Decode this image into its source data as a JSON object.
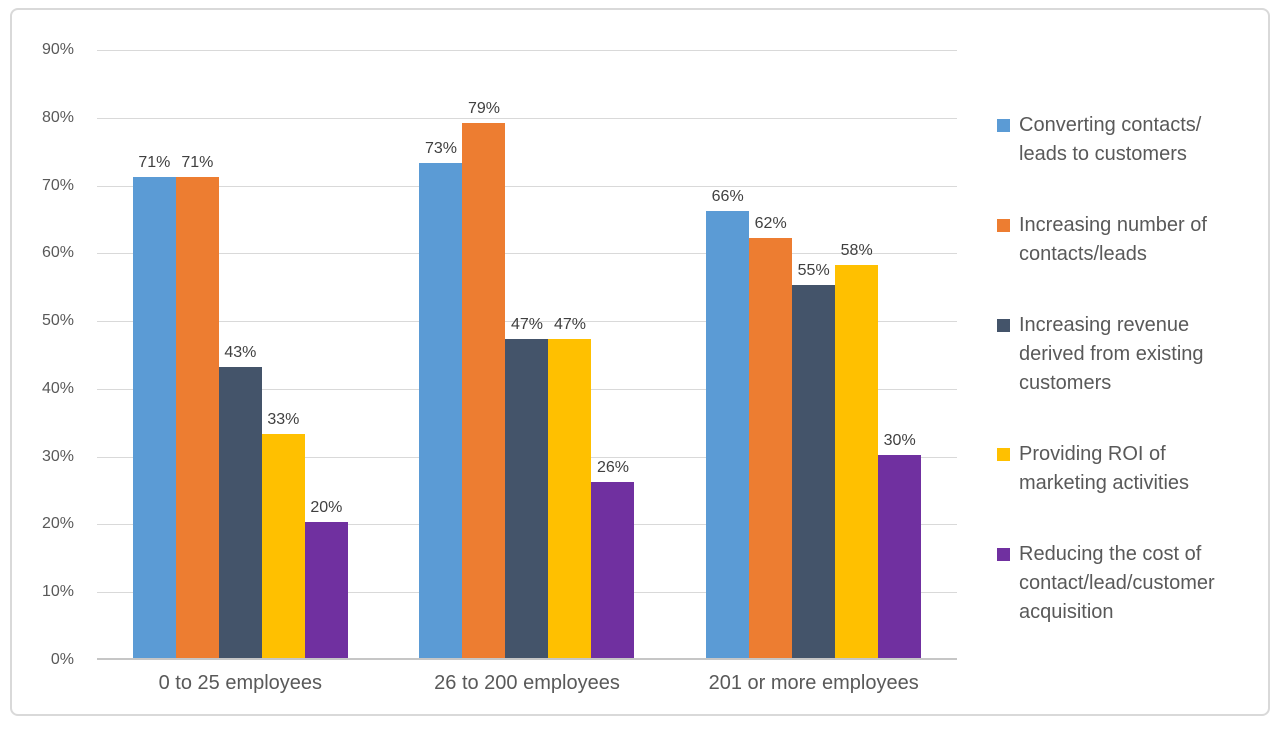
{
  "chart_data": {
    "type": "bar",
    "title": "",
    "categories": [
      "0 to 25 employees",
      "26 to 200 employees",
      "201 or more employees"
    ],
    "series": [
      {
        "name": "Converting contacts/leads to customers",
        "legend_lines": [
          "Converting contacts/",
          "leads to customers"
        ],
        "color": "#5B9BD5",
        "values": [
          71,
          73,
          66
        ]
      },
      {
        "name": "Increasing number of contacts/leads",
        "legend_lines": [
          "Increasing number of",
          "contacts/leads"
        ],
        "color": "#ED7D31",
        "values": [
          71,
          79,
          62
        ]
      },
      {
        "name": "Increasing revenue derived from existing customers",
        "legend_lines": [
          "Increasing revenue",
          "derived from existing",
          "customers"
        ],
        "color": "#44546A",
        "values": [
          43,
          47,
          55
        ]
      },
      {
        "name": "Providing ROI of marketing activities",
        "legend_lines": [
          "Providing ROI of",
          "marketing activities"
        ],
        "color": "#FFC000",
        "values": [
          33,
          47,
          58
        ]
      },
      {
        "name": "Reducing the cost of contact/lead/customer acquisition",
        "legend_lines": [
          "Reducing the cost of",
          "contact/lead/customer",
          "acquisition"
        ],
        "color": "#7030A0",
        "values": [
          20,
          26,
          30
        ]
      }
    ],
    "y_tick_values": [
      0,
      10,
      20,
      30,
      40,
      50,
      60,
      70,
      80,
      90
    ],
    "y_tick_labels": [
      "0%",
      "10%",
      "20%",
      "30%",
      "40%",
      "50%",
      "60%",
      "70%",
      "80%",
      "90%"
    ],
    "ylim": [
      0,
      90
    ],
    "xlabel": "",
    "ylabel": "",
    "grid": true,
    "legend_position": "right",
    "data_label_format": "{value}%"
  },
  "style": {
    "gridline_color": "#D9D9D9",
    "axis_line_color": "#C6C6C6",
    "tick_label_color": "#595959",
    "data_label_color": "#404040",
    "category_label_color": "#595959",
    "legend_text_color": "#595959",
    "frame_border_color": "#D9D9D9",
    "background_color": "#FFFFFF"
  }
}
